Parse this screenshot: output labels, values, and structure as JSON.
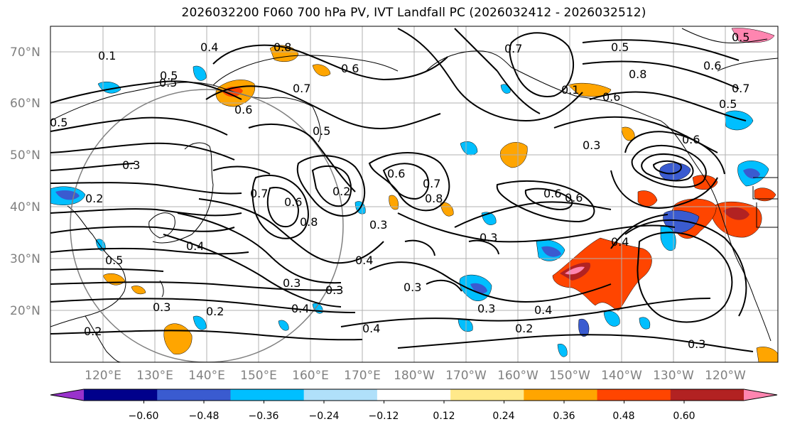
{
  "title": "2026032200 F060 700 hPa PV, IVT Landfall PC (2026032412 - 2026032512)",
  "lat_labels": [
    "70°N",
    "60°N",
    "50°N",
    "40°N",
    "30°N",
    "20°N"
  ],
  "lon_labels": [
    "120°E",
    "130°E",
    "140°E",
    "150°E",
    "160°E",
    "170°E",
    "180°W",
    "170°W",
    "160°W",
    "150°W",
    "140°W",
    "130°W",
    "120°W"
  ],
  "colorbar": {
    "tick_labels": [
      "−0.60",
      "−0.48",
      "−0.36",
      "−0.24",
      "−0.12",
      "0.12",
      "0.24",
      "0.36",
      "0.48",
      "0.60"
    ],
    "colors": [
      "#9932cc",
      "#00008b",
      "#3a5bd0",
      "#00bfff",
      "#b0e0fa",
      "#ffffff",
      "#ffe98a",
      "#ffa500",
      "#ff4500",
      "#b22222",
      "#ff85b0"
    ]
  },
  "contour_labels": [
    "0.1",
    "0.4",
    "0.5",
    "0.6",
    "0.5",
    "0.5",
    "0.3",
    "0.3",
    "0.2",
    "0.4",
    "0.5",
    "0.3",
    "0.2",
    "0.2",
    "0.6",
    "0.8",
    "0.7",
    "0.5",
    "0.7",
    "0.6",
    "0.8",
    "0.2",
    "0.3",
    "0.4",
    "0.3",
    "0.4",
    "0.3",
    "0.6",
    "0.8",
    "0.7",
    "0.4",
    "0.3",
    "0.2",
    "0.4",
    "0.4",
    "0.3",
    "0.6",
    "0.6",
    "0.8",
    "0.1",
    "0.5",
    "0.6",
    "0.7",
    "0.5",
    "0.7",
    "0.6",
    "0.6",
    "0.5",
    "0.3",
    "0.3"
  ]
}
